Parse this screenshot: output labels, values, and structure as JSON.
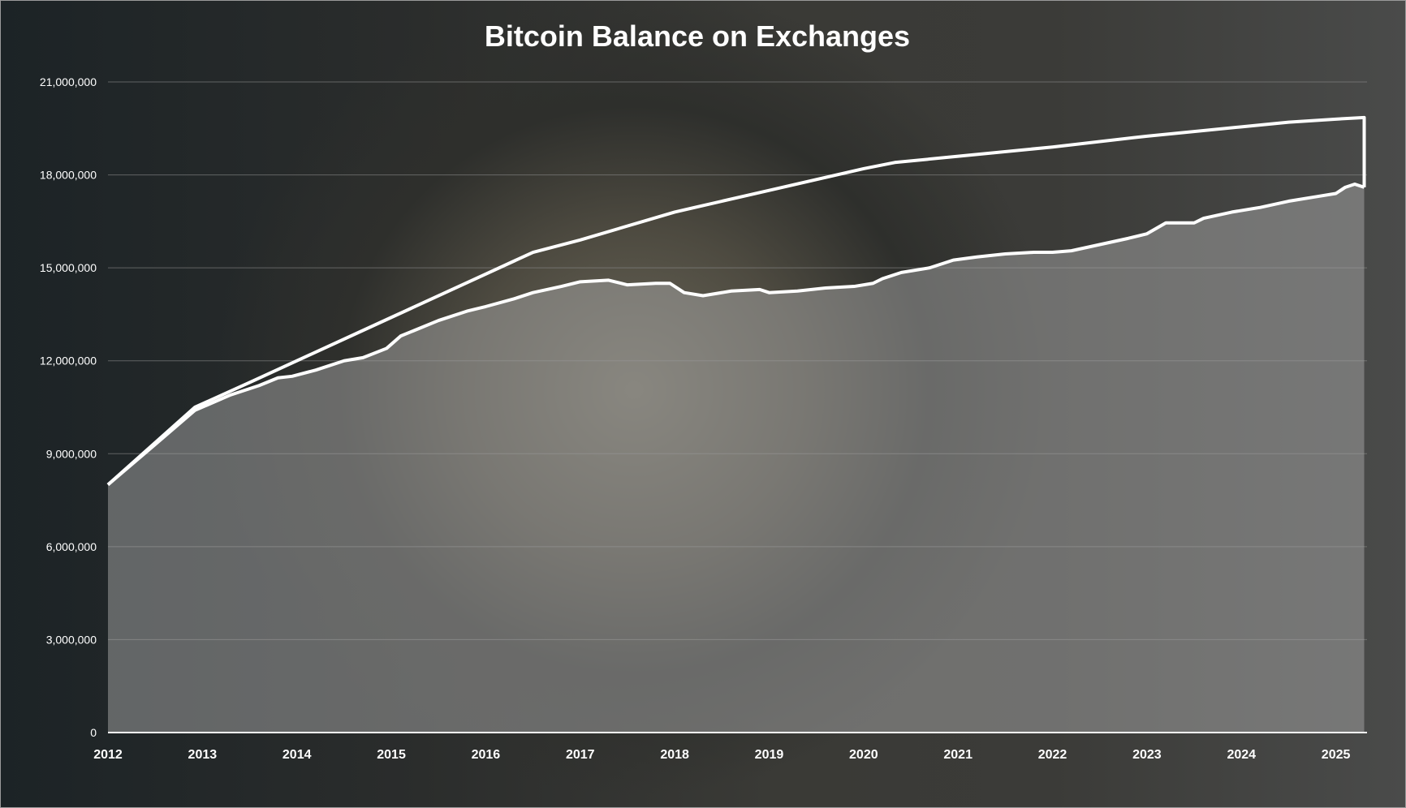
{
  "chart_data": {
    "type": "area",
    "title": "Bitcoin Balance on Exchanges",
    "xlabel": "",
    "ylabel": "",
    "xlim": [
      2012,
      2025.33
    ],
    "ylim": [
      0,
      21000000
    ],
    "grid": true,
    "x_ticks": [
      "2012",
      "2013",
      "2014",
      "2015",
      "2016",
      "2017",
      "2018",
      "2019",
      "2020",
      "2021",
      "2022",
      "2023",
      "2024",
      "2025"
    ],
    "y_ticks": [
      "0",
      "3,000,000",
      "6,000,000",
      "9,000,000",
      "12,000,000",
      "15,000,000",
      "18,000,000",
      "21,000,000"
    ],
    "series": [
      {
        "style": "line",
        "color": "#ffffff",
        "x": [
          2012.0,
          2012.92,
          2013.5,
          2014.0,
          2015.0,
          2016.0,
          2016.5,
          2017.0,
          2018.0,
          2019.0,
          2020.0,
          2020.33,
          2021.0,
          2022.0,
          2023.0,
          2024.0,
          2024.5,
          2025.0,
          2025.3,
          2025.3
        ],
        "y": [
          8000000,
          10500000,
          11300000,
          12000000,
          13400000,
          14800000,
          15500000,
          15900000,
          16800000,
          17500000,
          18200000,
          18400000,
          18600000,
          18900000,
          19250000,
          19550000,
          19700000,
          19800000,
          19850000,
          17600000
        ]
      },
      {
        "style": "area",
        "color": "#9c9c9c",
        "x": [
          2012.0,
          2012.5,
          2012.92,
          2013.3,
          2013.6,
          2013.8,
          2013.95,
          2014.2,
          2014.5,
          2014.7,
          2014.95,
          2015.1,
          2015.5,
          2015.8,
          2016.0,
          2016.3,
          2016.5,
          2016.8,
          2017.0,
          2017.3,
          2017.5,
          2017.8,
          2017.95,
          2018.1,
          2018.3,
          2018.6,
          2018.9,
          2019.0,
          2019.3,
          2019.6,
          2019.9,
          2020.1,
          2020.2,
          2020.4,
          2020.7,
          2020.95,
          2021.2,
          2021.5,
          2021.8,
          2022.0,
          2022.2,
          2022.5,
          2022.8,
          2023.0,
          2023.2,
          2023.5,
          2023.6,
          2023.9,
          2024.2,
          2024.5,
          2024.8,
          2025.0,
          2025.1,
          2025.2,
          2025.3
        ],
        "y": [
          8000000,
          9300000,
          10400000,
          10900000,
          11200000,
          11450000,
          11500000,
          11700000,
          12000000,
          12100000,
          12400000,
          12800000,
          13300000,
          13600000,
          13750000,
          14000000,
          14200000,
          14400000,
          14550000,
          14600000,
          14450000,
          14500000,
          14500000,
          14200000,
          14100000,
          14250000,
          14300000,
          14200000,
          14250000,
          14350000,
          14400000,
          14500000,
          14650000,
          14850000,
          15000000,
          15250000,
          15350000,
          15450000,
          15500000,
          15500000,
          15550000,
          15750000,
          15950000,
          16100000,
          16450000,
          16450000,
          16600000,
          16800000,
          16950000,
          17150000,
          17300000,
          17400000,
          17600000,
          17700000,
          17600000
        ]
      }
    ]
  }
}
